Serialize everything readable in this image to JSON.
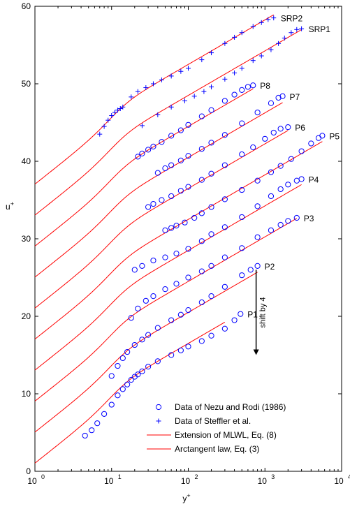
{
  "chart_data": {
    "type": "scatter",
    "xscale": "log",
    "xlim": [
      1,
      10000
    ],
    "ylim": [
      0,
      60
    ],
    "grid": false,
    "xlabel": "y+",
    "ylabel": "u+",
    "xticks": [
      {
        "value": 1,
        "base": "10",
        "exp": "0"
      },
      {
        "value": 10,
        "base": "10",
        "exp": "1"
      },
      {
        "value": 100,
        "base": "10",
        "exp": "2"
      },
      {
        "value": 1000,
        "base": "10",
        "exp": "3"
      },
      {
        "value": 10000,
        "base": "10",
        "exp": "4"
      }
    ],
    "yticks": [
      "0",
      "10",
      "20",
      "30",
      "40",
      "50",
      "60"
    ],
    "legend": {
      "placement": "bottom-right",
      "entries": [
        {
          "label": "Data of Nezu and Rodi (1986)",
          "marker": "circle",
          "color": "#0000ff"
        },
        {
          "label": "Data of Steffler et al.",
          "marker": "plus",
          "color": "#0000ff"
        },
        {
          "label": "Extension of MLWL, Eq. (8)",
          "marker": "line",
          "color": "#ff0000"
        },
        {
          "label": "Arctangent law, Eq. (3)",
          "marker": "line",
          "color": "#ff0000"
        }
      ]
    },
    "annotation": {
      "text": "shift by 4",
      "x": 800,
      "y_from": 26,
      "y_to": 15
    }
  },
  "series": [
    {
      "name": "P1",
      "marker": "circle",
      "offset": 0,
      "x": [
        4.5,
        5.5,
        6.5,
        8,
        10,
        12,
        14,
        16,
        18,
        20,
        22,
        25,
        30,
        40,
        60,
        80,
        100,
        150,
        200,
        300,
        400,
        480
      ],
      "y": [
        4.6,
        5.3,
        6.2,
        7.4,
        8.6,
        9.8,
        10.6,
        11.2,
        11.8,
        12.2,
        12.5,
        12.9,
        13.5,
        14.2,
        15,
        15.6,
        16.1,
        16.8,
        17.5,
        18.4,
        19.5,
        20.3
      ],
      "label": "P1"
    },
    {
      "name": "P2",
      "marker": "circle",
      "offset": 4,
      "x": [
        10,
        12,
        14,
        16,
        20,
        25,
        30,
        40,
        60,
        80,
        100,
        150,
        200,
        300,
        500,
        650,
        800
      ],
      "y": [
        12.3,
        13.6,
        14.6,
        15.4,
        16.3,
        17,
        17.6,
        18.5,
        19.5,
        20.2,
        20.8,
        21.8,
        22.6,
        23.8,
        25.3,
        26,
        26.5
      ],
      "label": "P2"
    },
    {
      "name": "P3",
      "marker": "circle",
      "offset": 8,
      "x": [
        18,
        22,
        28,
        35,
        50,
        70,
        100,
        150,
        200,
        300,
        500,
        800,
        1200,
        1600,
        2000,
        2600
      ],
      "y": [
        19.8,
        21,
        22,
        22.6,
        23.5,
        24.2,
        25,
        25.8,
        26.5,
        27.6,
        28.8,
        30.2,
        31.1,
        31.8,
        32.3,
        32.7
      ],
      "label": "P3"
    },
    {
      "name": "P4",
      "marker": "circle",
      "offset": 12,
      "x": [
        20,
        25,
        35,
        50,
        70,
        100,
        150,
        200,
        300,
        500,
        800,
        1200,
        1600,
        2000,
        2600,
        3000
      ],
      "y": [
        26,
        26.5,
        27.2,
        27.6,
        28.1,
        28.7,
        29.7,
        30.6,
        31.5,
        32.8,
        34.2,
        35.5,
        36.4,
        37,
        37.5,
        37.7
      ],
      "label": "P4"
    },
    {
      "name": "P5",
      "marker": "circle",
      "offset": 16,
      "x": [
        50,
        60,
        70,
        90,
        120,
        150,
        200,
        300,
        500,
        800,
        1200,
        1600,
        2200,
        3000,
        4000,
        5000,
        5600
      ],
      "y": [
        31.1,
        31.4,
        31.7,
        32.1,
        32.7,
        33.3,
        34.1,
        35.1,
        36.3,
        37.5,
        38.6,
        39.4,
        40.3,
        41.3,
        42.3,
        43,
        43.3
      ],
      "label": "P5"
    },
    {
      "name": "P6",
      "marker": "circle",
      "offset": 20,
      "x": [
        30,
        35,
        45,
        60,
        80,
        100,
        150,
        200,
        300,
        500,
        700,
        1000,
        1300,
        1600,
        2000
      ],
      "y": [
        34.1,
        34.5,
        35,
        35.5,
        36.2,
        36.7,
        37.6,
        38.4,
        39.5,
        40.9,
        41.8,
        42.9,
        43.7,
        44.2,
        44.4
      ],
      "label": "P6"
    },
    {
      "name": "P7",
      "marker": "circle",
      "offset": 24,
      "x": [
        40,
        50,
        60,
        80,
        100,
        150,
        200,
        300,
        500,
        800,
        1200,
        1500,
        1700
      ],
      "y": [
        38.5,
        39.1,
        39.5,
        40.1,
        40.7,
        41.6,
        42.4,
        43.4,
        44.9,
        46.3,
        47.5,
        48.2,
        48.4
      ],
      "label": "P7"
    },
    {
      "name": "P8",
      "marker": "circle",
      "offset": 28,
      "x": [
        22,
        25,
        30,
        35,
        45,
        60,
        80,
        100,
        150,
        200,
        300,
        400,
        500,
        600,
        700
      ],
      "y": [
        40.6,
        41,
        41.5,
        41.9,
        42.5,
        43.3,
        44,
        44.7,
        45.8,
        46.6,
        47.8,
        48.6,
        49.2,
        49.6,
        49.8
      ],
      "label": "P8"
    },
    {
      "name": "SRP1",
      "marker": "plus",
      "offset": 32,
      "x": [
        25,
        40,
        60,
        90,
        120,
        160,
        200,
        300,
        400,
        500,
        700,
        900,
        1200,
        1500,
        1800,
        2200,
        2600,
        3000
      ],
      "y": [
        44.6,
        46,
        47,
        47.8,
        48.4,
        49,
        49.6,
        50.6,
        51.4,
        52,
        53,
        53.6,
        54.4,
        55.2,
        55.9,
        56.6,
        57,
        57.1
      ],
      "label": "SRP1"
    },
    {
      "name": "SRP2",
      "marker": "plus",
      "offset": 36,
      "x": [
        7,
        8,
        9,
        10,
        11,
        12,
        13,
        14,
        18,
        22,
        28,
        35,
        45,
        60,
        80,
        100,
        150,
        200,
        300,
        400,
        500,
        700,
        900,
        1100,
        1300
      ],
      "y": [
        43.5,
        44.5,
        45.3,
        45.9,
        46.3,
        46.6,
        46.8,
        47,
        48.3,
        49,
        49.5,
        50,
        50.5,
        51,
        51.6,
        52,
        53.1,
        54,
        55.2,
        56,
        56.6,
        57.4,
        57.9,
        58.3,
        58.5
      ],
      "label": "SRP2"
    }
  ],
  "curves": [
    {
      "name": "P1",
      "offset": 0,
      "end": 300
    },
    {
      "name": "P2",
      "offset": 4,
      "end": 800
    },
    {
      "name": "P3",
      "offset": 8,
      "end": 2600
    },
    {
      "name": "P4",
      "offset": 12,
      "end": 3000
    },
    {
      "name": "P5",
      "offset": 16,
      "end": 5600
    },
    {
      "name": "P6",
      "offset": 20,
      "end": 2000
    },
    {
      "name": "P7",
      "offset": 24,
      "end": 1700
    },
    {
      "name": "P8",
      "offset": 28,
      "end": 700
    },
    {
      "name": "SRP1",
      "offset": 32,
      "end": 3000
    },
    {
      "name": "SRP2",
      "offset": 36,
      "end": 1300
    }
  ]
}
